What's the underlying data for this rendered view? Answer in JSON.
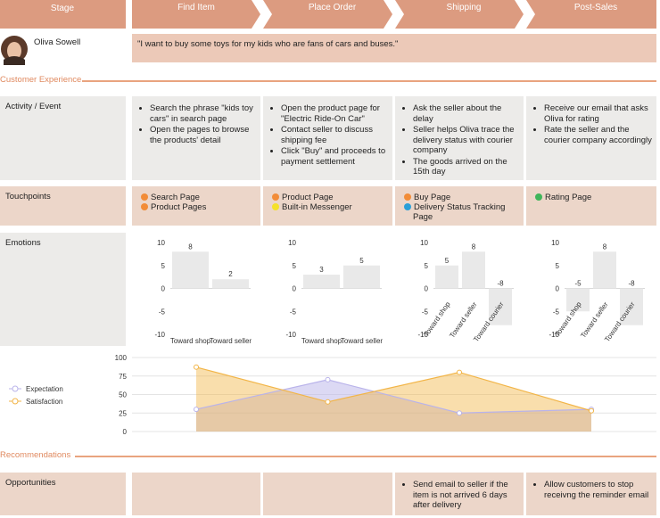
{
  "header": {
    "stage_label": "Stage",
    "stages": [
      "Find Item",
      "Place Order",
      "Shipping",
      "Post-Sales"
    ]
  },
  "persona": {
    "name": "Oliva Sowell",
    "quote": "\"I want to buy some toys for my kids who are fans of cars and buses.\""
  },
  "customer_experience": "Customer Experience",
  "activity": {
    "label": "Activity / Event",
    "items": [
      [
        "Search the phrase \"kids toy cars\" in search page",
        "Open the pages to browse the products' detail"
      ],
      [
        "Open the product page for \"Electric Ride-On Car\"",
        "Contact seller to discuss shipping fee",
        "Click \"Buy\" and proceeds to payment settlement"
      ],
      [
        "Ask the seller about the delay",
        "Seller helps Oliva trace the delivery status with courier company",
        "The goods arrived on the 15th day"
      ],
      [
        "Receive our email that asks Oliva for rating",
        "Rate the seller and the courier company accordingly"
      ]
    ]
  },
  "touchpoints": {
    "label": "Touchpoints",
    "items": [
      [
        {
          "text": "Search Page",
          "color": "#f28c38"
        },
        {
          "text": "Product Pages",
          "color": "#f28c38"
        }
      ],
      [
        {
          "text": "Product Page",
          "color": "#f28c38"
        },
        {
          "text": "Built-in Messenger",
          "color": "#f5e12a"
        }
      ],
      [
        {
          "text": "Buy Page",
          "color": "#f28c38"
        },
        {
          "text": "Delivery Status Tracking Page",
          "color": "#2a9fd8"
        }
      ],
      [
        {
          "text": "Rating Page",
          "color": "#3fb55a"
        }
      ]
    ]
  },
  "emotions_label": "Emotions",
  "recommendations": "Recommendations",
  "opportunities": {
    "label": "Opportunities",
    "items": [
      [],
      [],
      [
        "Send email to seller if the item is not arrived 6 days after delivery"
      ],
      [
        "Allow customers to stop receivng the reminder email"
      ]
    ]
  },
  "chart_data": [
    {
      "type": "bar",
      "categories": [
        "Toward shop",
        "Toward seller"
      ],
      "values": [
        8,
        2
      ],
      "color": "#e9e9e9",
      "ylim": [
        -10,
        10
      ],
      "yticks": [
        -10,
        -5,
        0,
        5,
        10
      ]
    },
    {
      "type": "bar",
      "categories": [
        "Toward shop",
        "Toward seller"
      ],
      "values": [
        3,
        5
      ],
      "color": "#e9e9e9",
      "ylim": [
        -10,
        10
      ],
      "yticks": [
        -10,
        -5,
        0,
        5,
        10
      ]
    },
    {
      "type": "bar",
      "categories": [
        "Toward shop",
        "Toward seller",
        "Toward courier"
      ],
      "values": [
        5,
        8,
        -8
      ],
      "color": "#e9e9e9",
      "ylim": [
        -10,
        10
      ],
      "yticks": [
        -10,
        -5,
        0,
        5,
        10
      ]
    },
    {
      "type": "bar",
      "categories": [
        "Toward shop",
        "Toward seller",
        "Toward courier"
      ],
      "values": [
        -5,
        8,
        -8
      ],
      "color": "#e9e9e9",
      "ylim": [
        -10,
        10
      ],
      "yticks": [
        -10,
        -5,
        0,
        5,
        10
      ]
    },
    {
      "type": "line",
      "categories": [
        null,
        null,
        null,
        null
      ],
      "series": [
        {
          "name": "Expectation",
          "color": "#b9b3ea",
          "values": [
            30,
            70,
            25,
            30
          ]
        },
        {
          "name": "Satisfaction",
          "color": "#f2b548",
          "values": [
            87,
            40,
            80,
            28
          ]
        }
      ],
      "ylim": [
        0,
        100
      ],
      "yticks": [
        0,
        25,
        50,
        75,
        100
      ],
      "grid": true,
      "legend": "left"
    }
  ]
}
